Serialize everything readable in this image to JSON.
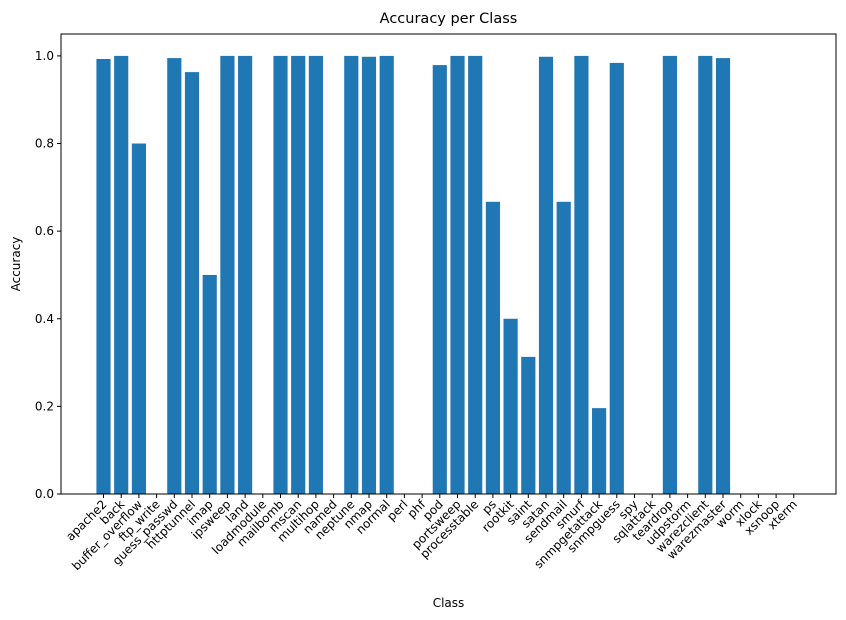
{
  "chart_data": {
    "type": "bar",
    "title": "Accuracy per Class",
    "xlabel": "Class",
    "ylabel": "Accuracy",
    "ylim": [
      0,
      1.05
    ],
    "yticks": [
      0.0,
      0.2,
      0.4,
      0.6,
      0.8,
      1.0
    ],
    "ytick_labels": [
      "0.0",
      "0.2",
      "0.4",
      "0.6",
      "0.8",
      "1.0"
    ],
    "bar_color": "#1f77b4",
    "grid": false,
    "categories": [
      "apache2",
      "back",
      "buffer_overflow",
      "ftp_write",
      "guess_passwd",
      "httptunnel",
      "imap",
      "ipsweep",
      "land",
      "loadmodule",
      "mailbomb",
      "mscan",
      "multihop",
      "named",
      "neptune",
      "nmap",
      "normal",
      "perl",
      "phf",
      "pod",
      "portsweep",
      "processtable",
      "ps",
      "rootkit",
      "saint",
      "satan",
      "sendmail",
      "smurf",
      "snmpgetattack",
      "snmpguess",
      "spy",
      "sqlattack",
      "teardrop",
      "udpstorm",
      "warezclient",
      "warezmaster",
      "worm",
      "xlock",
      "xsnoop",
      "xterm"
    ],
    "values": [
      0.993,
      1.0,
      0.8,
      0.0,
      0.995,
      0.963,
      0.5,
      1.0,
      1.0,
      0.0,
      1.0,
      1.0,
      1.0,
      0.0,
      1.0,
      0.998,
      1.0,
      0.0,
      0.0,
      0.979,
      1.0,
      1.0,
      0.667,
      0.4,
      0.313,
      0.998,
      0.667,
      1.0,
      0.196,
      0.984,
      0.0,
      0.0,
      1.0,
      0.0,
      1.0,
      0.995,
      0.0,
      0.0,
      0.0,
      0.0
    ]
  }
}
